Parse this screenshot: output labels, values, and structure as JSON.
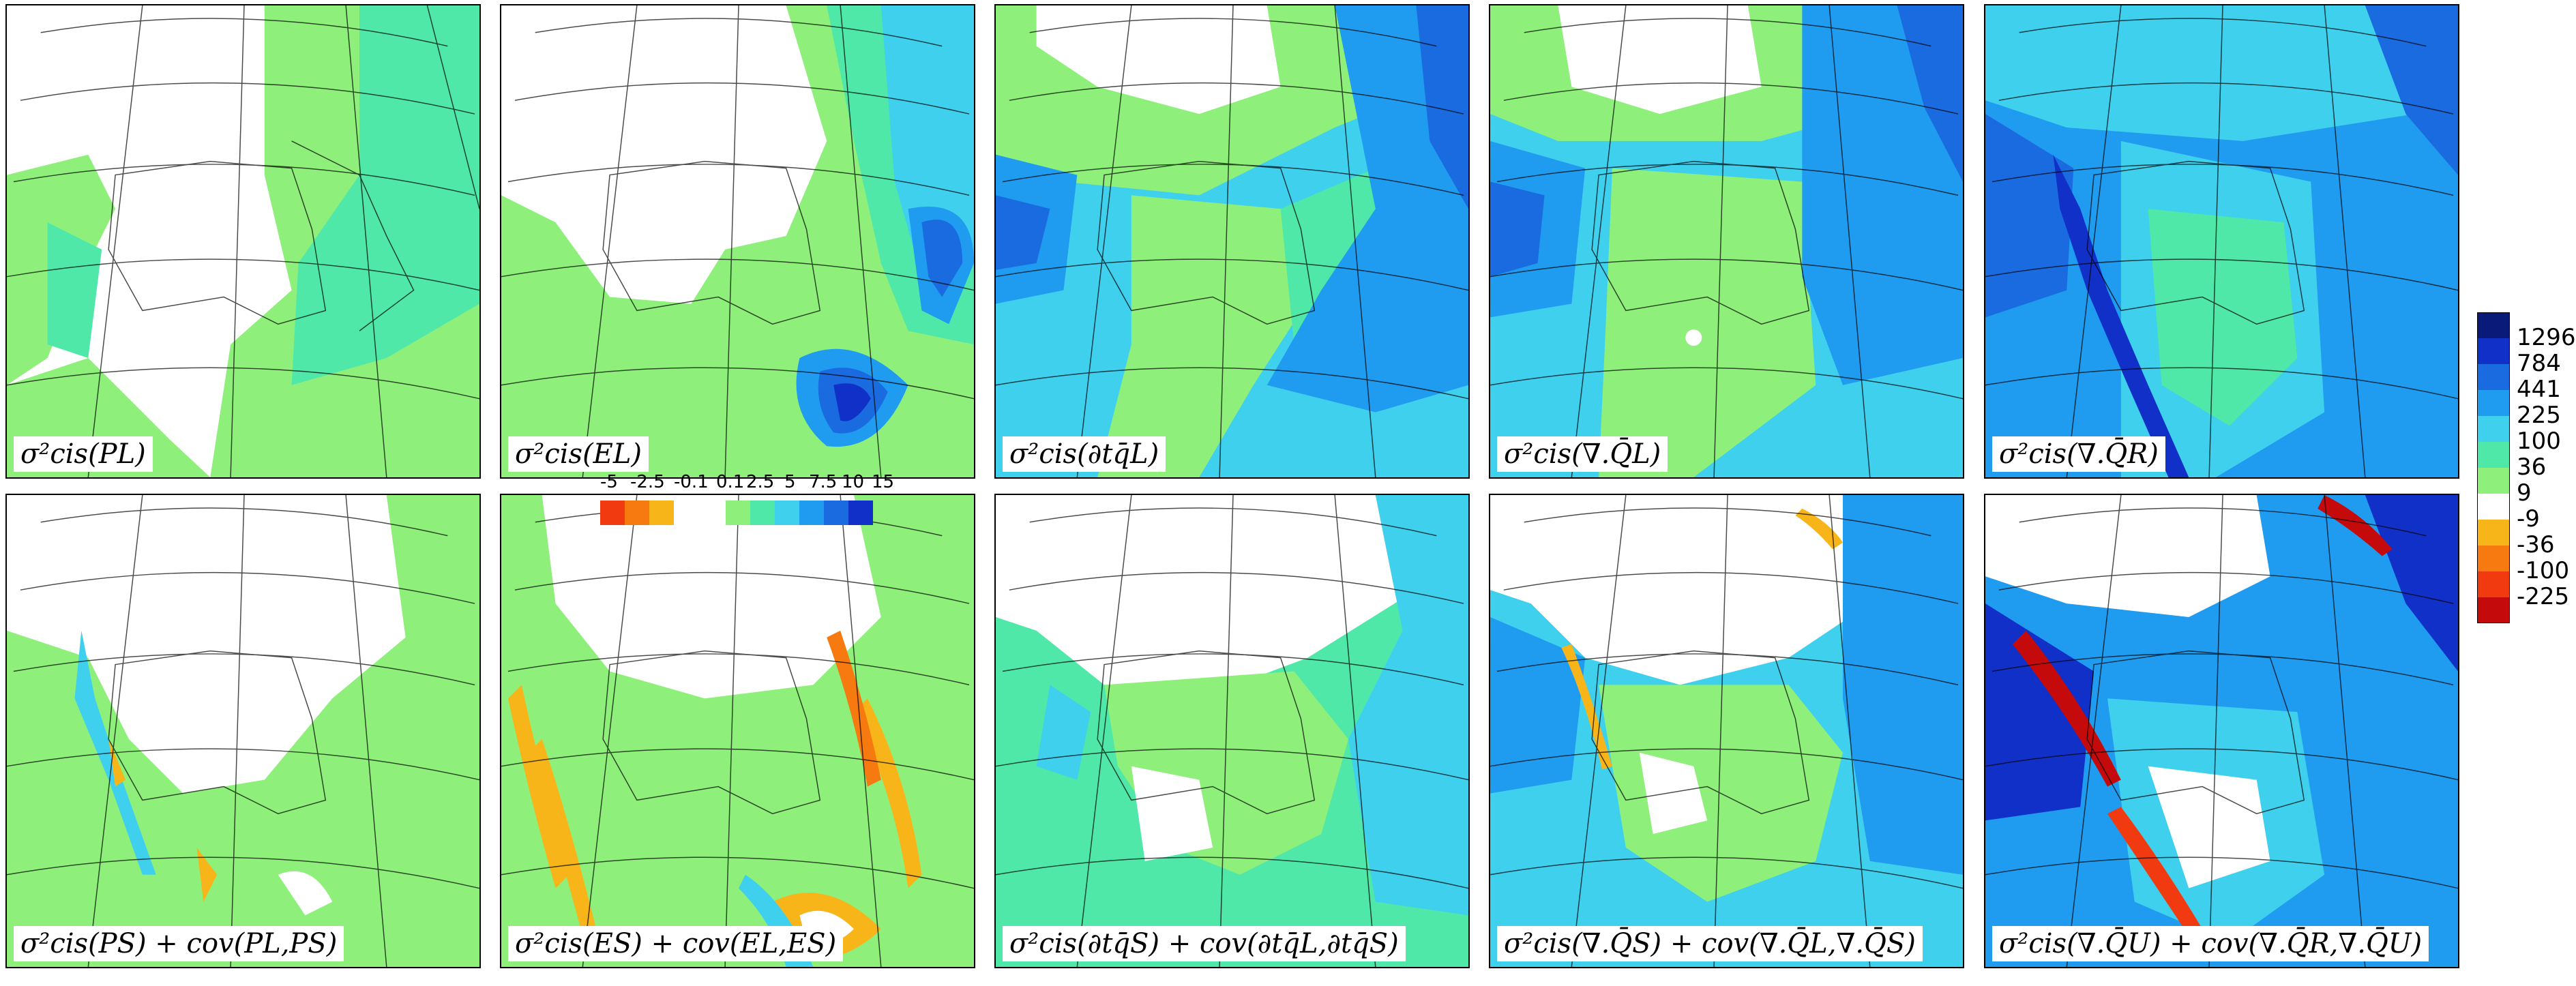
{
  "colors": {
    "green": "#8ef07a",
    "teal": "#4fe8a8",
    "lightblue": "#3fd0ee",
    "blue": "#1f9bf0",
    "midblue": "#1a6ae0",
    "darkblue": "#1030c8",
    "navy": "#0a1a78",
    "yellow": "#f7b51a",
    "orange": "#f77a10",
    "redorange": "#f23a10",
    "red": "#c40a0a"
  },
  "panels": [
    {
      "label": "σ²cis(PL)",
      "bg": "#8ef07a"
    },
    {
      "label": "σ²cis(EL)",
      "bg": "#8ef07a"
    },
    {
      "label": "σ²cis(∂tq̄L)",
      "bg": "#3fd0ee"
    },
    {
      "label": "σ²cis(∇.Q̄L)",
      "bg": "#3fd0ee"
    },
    {
      "label": "σ²cis(∇.Q̄R)",
      "bg": "#1f9bf0"
    },
    {
      "label": "σ²cis(PS) + cov(PL,PS)",
      "bg": "#8ef07a"
    },
    {
      "label": "σ²cis(ES) + cov(EL,ES)",
      "bg": "#8ef07a"
    },
    {
      "label": "σ²cis(∂tq̄S) + cov(∂tq̄L,∂tq̄S)",
      "bg": "#4fe8a8"
    },
    {
      "label": "σ²cis(∇.Q̄S) + cov(∇.Q̄L,∇.Q̄S)",
      "bg": "#3fd0ee"
    },
    {
      "label": "σ²cis(∇.Q̄U) + cov(∇.Q̄R,∇.Q̄U)",
      "bg": "#1f9bf0"
    }
  ],
  "colorbar": {
    "positive_ticks": [
      "1296",
      "784",
      "441",
      "225",
      "100",
      "36",
      "9"
    ],
    "negative_ticks": [
      "-9",
      "-36",
      "-100",
      "-225"
    ]
  },
  "inset_legend": {
    "negative_ticks": [
      "-5",
      "-2.5",
      "-0.1"
    ],
    "positive_ticks": [
      "0.1",
      "2.5",
      "5",
      "7.5",
      "10",
      "15"
    ]
  }
}
